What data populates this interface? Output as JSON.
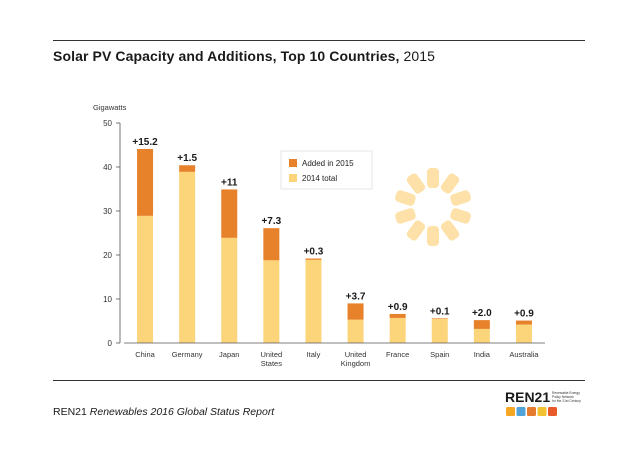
{
  "title": "Solar PV Capacity and Additions, Top 10 Countries,",
  "title_year": "2015",
  "footer": {
    "org": "REN21",
    "publication": "Renewables 2016 Global Status Report"
  },
  "logo": {
    "wordmark": "REN21",
    "tagline": [
      "Renewable Energy",
      "Policy Network",
      "for the 21st Century"
    ],
    "icons": [
      "sun-icon",
      "wind-icon",
      "water-icon",
      "wave-icon",
      "flame-icon"
    ]
  },
  "colors": {
    "added_2015": "#E8822A",
    "total_2014": "#FCD47A",
    "sun_graphic": "#FDE1A8",
    "logo_icons": [
      "#F5A623",
      "#4FA3D9",
      "#E57B2E",
      "#F2C230",
      "#E95A2B"
    ]
  },
  "chart_data": {
    "type": "bar",
    "stacked": true,
    "ylabel": "Gigawatts",
    "ylim": [
      0,
      50
    ],
    "yticks": [
      0,
      10,
      20,
      30,
      40,
      50
    ],
    "grid": false,
    "legend_position": "upper-middle",
    "categories": [
      [
        "China"
      ],
      [
        "Germany"
      ],
      [
        "Japan"
      ],
      [
        "United",
        "States"
      ],
      [
        "Italy"
      ],
      [
        "United",
        "Kingdom"
      ],
      [
        "France"
      ],
      [
        "Spain"
      ],
      [
        "India"
      ],
      [
        "Australia"
      ]
    ],
    "series": [
      {
        "name": "2014 total",
        "values": [
          28.9,
          38.9,
          23.9,
          18.8,
          18.9,
          5.3,
          5.7,
          5.5,
          3.2,
          4.2
        ]
      },
      {
        "name": "Added in 2015",
        "values": [
          15.2,
          1.5,
          11.0,
          7.3,
          0.3,
          3.7,
          0.9,
          0.1,
          2.0,
          0.9
        ]
      }
    ],
    "data_labels": [
      "+15.2",
      "+1.5",
      "+11",
      "+7.3",
      "+0.3",
      "+3.7",
      "+0.9",
      "+0.1",
      "+2.0",
      "+0.9"
    ]
  }
}
